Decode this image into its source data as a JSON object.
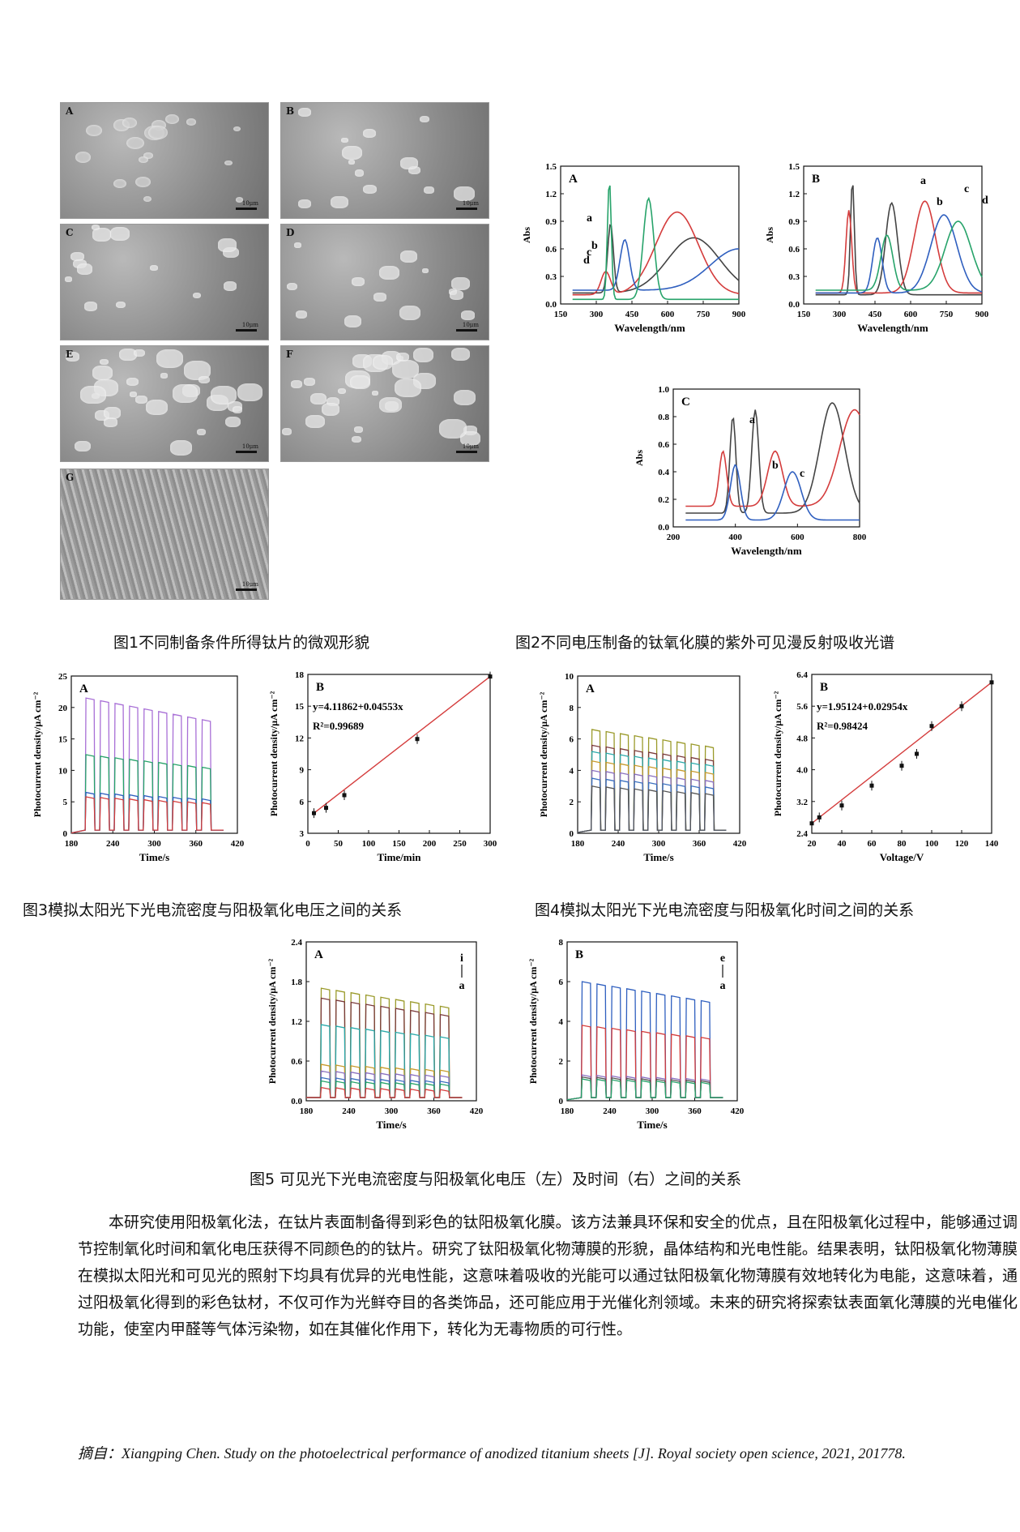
{
  "fig1": {
    "panels": [
      {
        "label": "A",
        "scale": "10μm"
      },
      {
        "label": "B",
        "scale": "10μm"
      },
      {
        "label": "C",
        "scale": "10μm"
      },
      {
        "label": "D",
        "scale": "10μm"
      },
      {
        "label": "E",
        "scale": "10μm"
      },
      {
        "label": "F",
        "scale": "10μm"
      },
      {
        "label": "G",
        "scale": "10μm"
      }
    ],
    "caption": "图1不同制备条件所得钛片的微观形貌"
  },
  "fig2": {
    "caption": "图2不同电压制备的钛氧化膜的紫外可见漫反射吸收光谱",
    "panels": [
      {
        "label": "A",
        "ylabel": "Abs",
        "xlabel": "Wavelength/nm",
        "xticks": [
          "150",
          "300",
          "450",
          "600",
          "750",
          "900"
        ],
        "yticks": [
          "0.0",
          "0.3",
          "0.6",
          "0.9",
          "1.2",
          "1.5"
        ],
        "curve_labels": [
          "a",
          "b",
          "c",
          "d"
        ],
        "colors": [
          "#444444",
          "#d43c3c",
          "#2f5fbf",
          "#27a36a"
        ]
      },
      {
        "label": "B",
        "ylabel": "Abs",
        "xlabel": "Wavelength/nm",
        "xticks": [
          "150",
          "300",
          "450",
          "600",
          "750",
          "900"
        ],
        "yticks": [
          "0.0",
          "0.3",
          "0.6",
          "0.9",
          "1.2",
          "1.5"
        ],
        "curve_labels": [
          "a",
          "b",
          "c",
          "d"
        ],
        "colors": [
          "#444444",
          "#d43c3c",
          "#2f5fbf",
          "#27a36a"
        ]
      },
      {
        "label": "C",
        "ylabel": "Abs",
        "xlabel": "Wavelength/nm",
        "xticks": [
          "200",
          "400",
          "600",
          "800"
        ],
        "yticks": [
          "0.0",
          "0.2",
          "0.4",
          "0.6",
          "0.8",
          "1.0"
        ],
        "curve_labels": [
          "a",
          "b",
          "c"
        ],
        "colors": [
          "#444444",
          "#d43c3c",
          "#2f5fbf"
        ]
      }
    ]
  },
  "fig3": {
    "caption": "图3模拟太阳光下光电流密度与阳极氧化电压之间的关系",
    "A": {
      "label": "A",
      "ylabel": "Photocurrent density/μA cm⁻²",
      "xlabel": "Time/s",
      "xticks": [
        "180",
        "240",
        "300",
        "360",
        "420"
      ],
      "yticks": [
        "0",
        "5",
        "10",
        "15",
        "20",
        "25"
      ],
      "levels": [
        21.5,
        12.5,
        6.5,
        5.8
      ],
      "colors": [
        "#a86fd6",
        "#27a36a",
        "#2f5fbf",
        "#d43c3c"
      ]
    },
    "B": {
      "label": "B",
      "ylabel": "Photocurrent density/μA cm⁻²",
      "xlabel": "Time/min",
      "equation": "y=4.11862+0.04553x",
      "r2": "R²=0.99689",
      "xticks": [
        "0",
        "50",
        "100",
        "150",
        "200",
        "250",
        "300"
      ],
      "yticks": [
        "3",
        "6",
        "9",
        "12",
        "15",
        "18"
      ],
      "points": [
        [
          10,
          4.9
        ],
        [
          30,
          5.4
        ],
        [
          60,
          6.6
        ],
        [
          180,
          11.9
        ],
        [
          300,
          17.8
        ]
      ]
    }
  },
  "fig4": {
    "caption": "图4模拟太阳光下光电流密度与阳极氧化时间之间的关系",
    "A": {
      "label": "A",
      "ylabel": "Photocurrent density/μA cm⁻²",
      "xlabel": "Time/s",
      "xticks": [
        "180",
        "240",
        "300",
        "360",
        "420"
      ],
      "yticks": [
        "0",
        "2",
        "4",
        "6",
        "8",
        "10"
      ],
      "levels": [
        6.6,
        5.6,
        5.2,
        4.6,
        4.0,
        3.5,
        3.0
      ],
      "colors": [
        "#9a9a2a",
        "#7a3a3a",
        "#2aa9a9",
        "#c79a2a",
        "#8a6fbf",
        "#3a6fbf",
        "#555555"
      ]
    },
    "B": {
      "label": "B",
      "ylabel": "Photocurrent density/μA cm⁻²",
      "xlabel": "Voltage/V",
      "equation": "y=1.95124+0.02954x",
      "r2": "R²=0.98424",
      "xticks": [
        "20",
        "40",
        "60",
        "80",
        "100",
        "120",
        "140"
      ],
      "yticks": [
        "2.4",
        "3.2",
        "4.0",
        "4.8",
        "5.6",
        "6.4"
      ],
      "points": [
        [
          20,
          2.65
        ],
        [
          25,
          2.8
        ],
        [
          40,
          3.1
        ],
        [
          60,
          3.6
        ],
        [
          80,
          4.1
        ],
        [
          90,
          4.4
        ],
        [
          100,
          5.1
        ],
        [
          120,
          5.6
        ],
        [
          140,
          6.2
        ]
      ]
    }
  },
  "fig5": {
    "caption": "图5 可见光下光电流密度与阳极氧化电压（左）及时间（右）之间的关系",
    "A": {
      "label": "A",
      "ylabel": "Photocurrent density/μA cm⁻²",
      "xlabel": "Time/s",
      "xticks": [
        "180",
        "240",
        "300",
        "360",
        "420"
      ],
      "yticks": [
        "0.0",
        "0.6",
        "1.2",
        "1.8",
        "2.4"
      ],
      "arrow_top": "i",
      "arrow_bottom": "a",
      "levels": [
        1.7,
        1.55,
        1.15,
        0.55,
        0.45,
        0.35,
        0.3,
        0.2
      ],
      "colors": [
        "#9a9a2a",
        "#7a3a3a",
        "#2aa9a9",
        "#c79a2a",
        "#8a6fbf",
        "#3a6fbf",
        "#27a36a",
        "#d43c3c"
      ]
    },
    "B": {
      "label": "B",
      "ylabel": "Photocurrent density/μA cm⁻²",
      "xlabel": "Time/s",
      "xticks": [
        "180",
        "240",
        "300",
        "360",
        "420"
      ],
      "yticks": [
        "0",
        "2",
        "4",
        "6",
        "8"
      ],
      "arrow_top": "e",
      "arrow_bottom": "a",
      "levels": [
        6.0,
        3.8,
        1.3,
        1.2,
        1.1
      ],
      "colors": [
        "#2f5fbf",
        "#d43c3c",
        "#8a6fbf",
        "#555555",
        "#27a36a"
      ]
    }
  },
  "body_text": "本研究使用阳极氧化法，在钛片表面制备得到彩色的钛阳极氧化膜。该方法兼具环保和安全的优点，且在阳极氧化过程中，能够通过调节控制氧化时间和氧化电压获得不同颜色的的钛片。研究了钛阳极氧化物薄膜的形貌，晶体结构和光电性能。结果表明，钛阳极氧化物薄膜在模拟太阳光和可见光的照射下均具有优异的光电性能，这意味着吸收的光能可以通过钛阳极氧化物薄膜有效地转化为电能，这意味着，通过阳极氧化得到的彩色钛材，不仅可作为光鲜夺目的各类饰品，还可能应用于光催化剂领域。未来的研究将探索钛表面氧化薄膜的光电催化功能，使室内甲醛等气体污染物，如在其催化作用下，转化为无毒物质的可行性。",
  "citation": "摘自：Xiangping Chen. Study on the photoelectrical performance of anodized titanium sheets [J].  Royal society open science, 2021, 201778."
}
